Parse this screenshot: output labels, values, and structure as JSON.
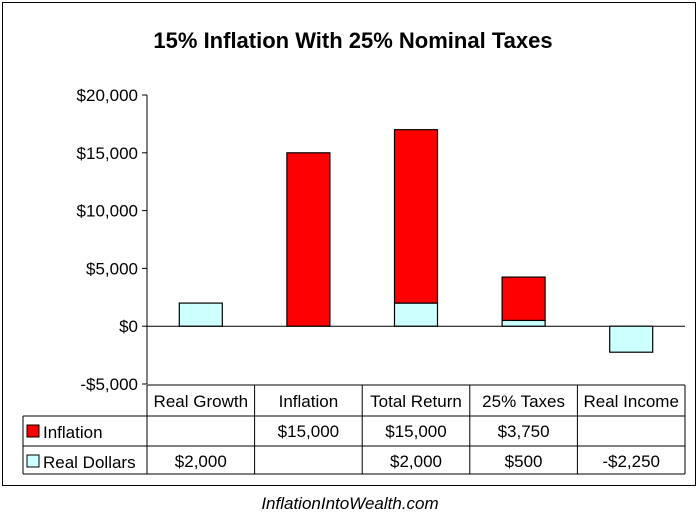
{
  "chart_data": {
    "type": "bar",
    "stacked": true,
    "title": "15% Inflation With 25% Nominal Taxes",
    "categories": [
      "Real Growth",
      "Inflation",
      "Total Return",
      "25% Taxes",
      "Real Income"
    ],
    "ylim": [
      -5000,
      20000
    ],
    "yticks": [
      -5000,
      0,
      5000,
      10000,
      15000,
      20000
    ],
    "ytick_labels": [
      "-$5,000",
      "$0",
      "$5,000",
      "$10,000",
      "$15,000",
      "$20,000"
    ],
    "grid": false,
    "legend_placement": "data-table",
    "series": [
      {
        "name": "Inflation",
        "color": "#ff0000",
        "values": [
          null,
          15000,
          15000,
          3750,
          null
        ],
        "labels": [
          "",
          "$15,000",
          "$15,000",
          "$3,750",
          ""
        ]
      },
      {
        "name": "Real Dollars",
        "color": "#ccffff",
        "values": [
          2000,
          null,
          2000,
          500,
          -2250
        ],
        "labels": [
          "$2,000",
          "",
          "$2,000",
          "$500",
          "-$2,250"
        ]
      }
    ]
  },
  "footer": "InflationIntoWealth.com"
}
